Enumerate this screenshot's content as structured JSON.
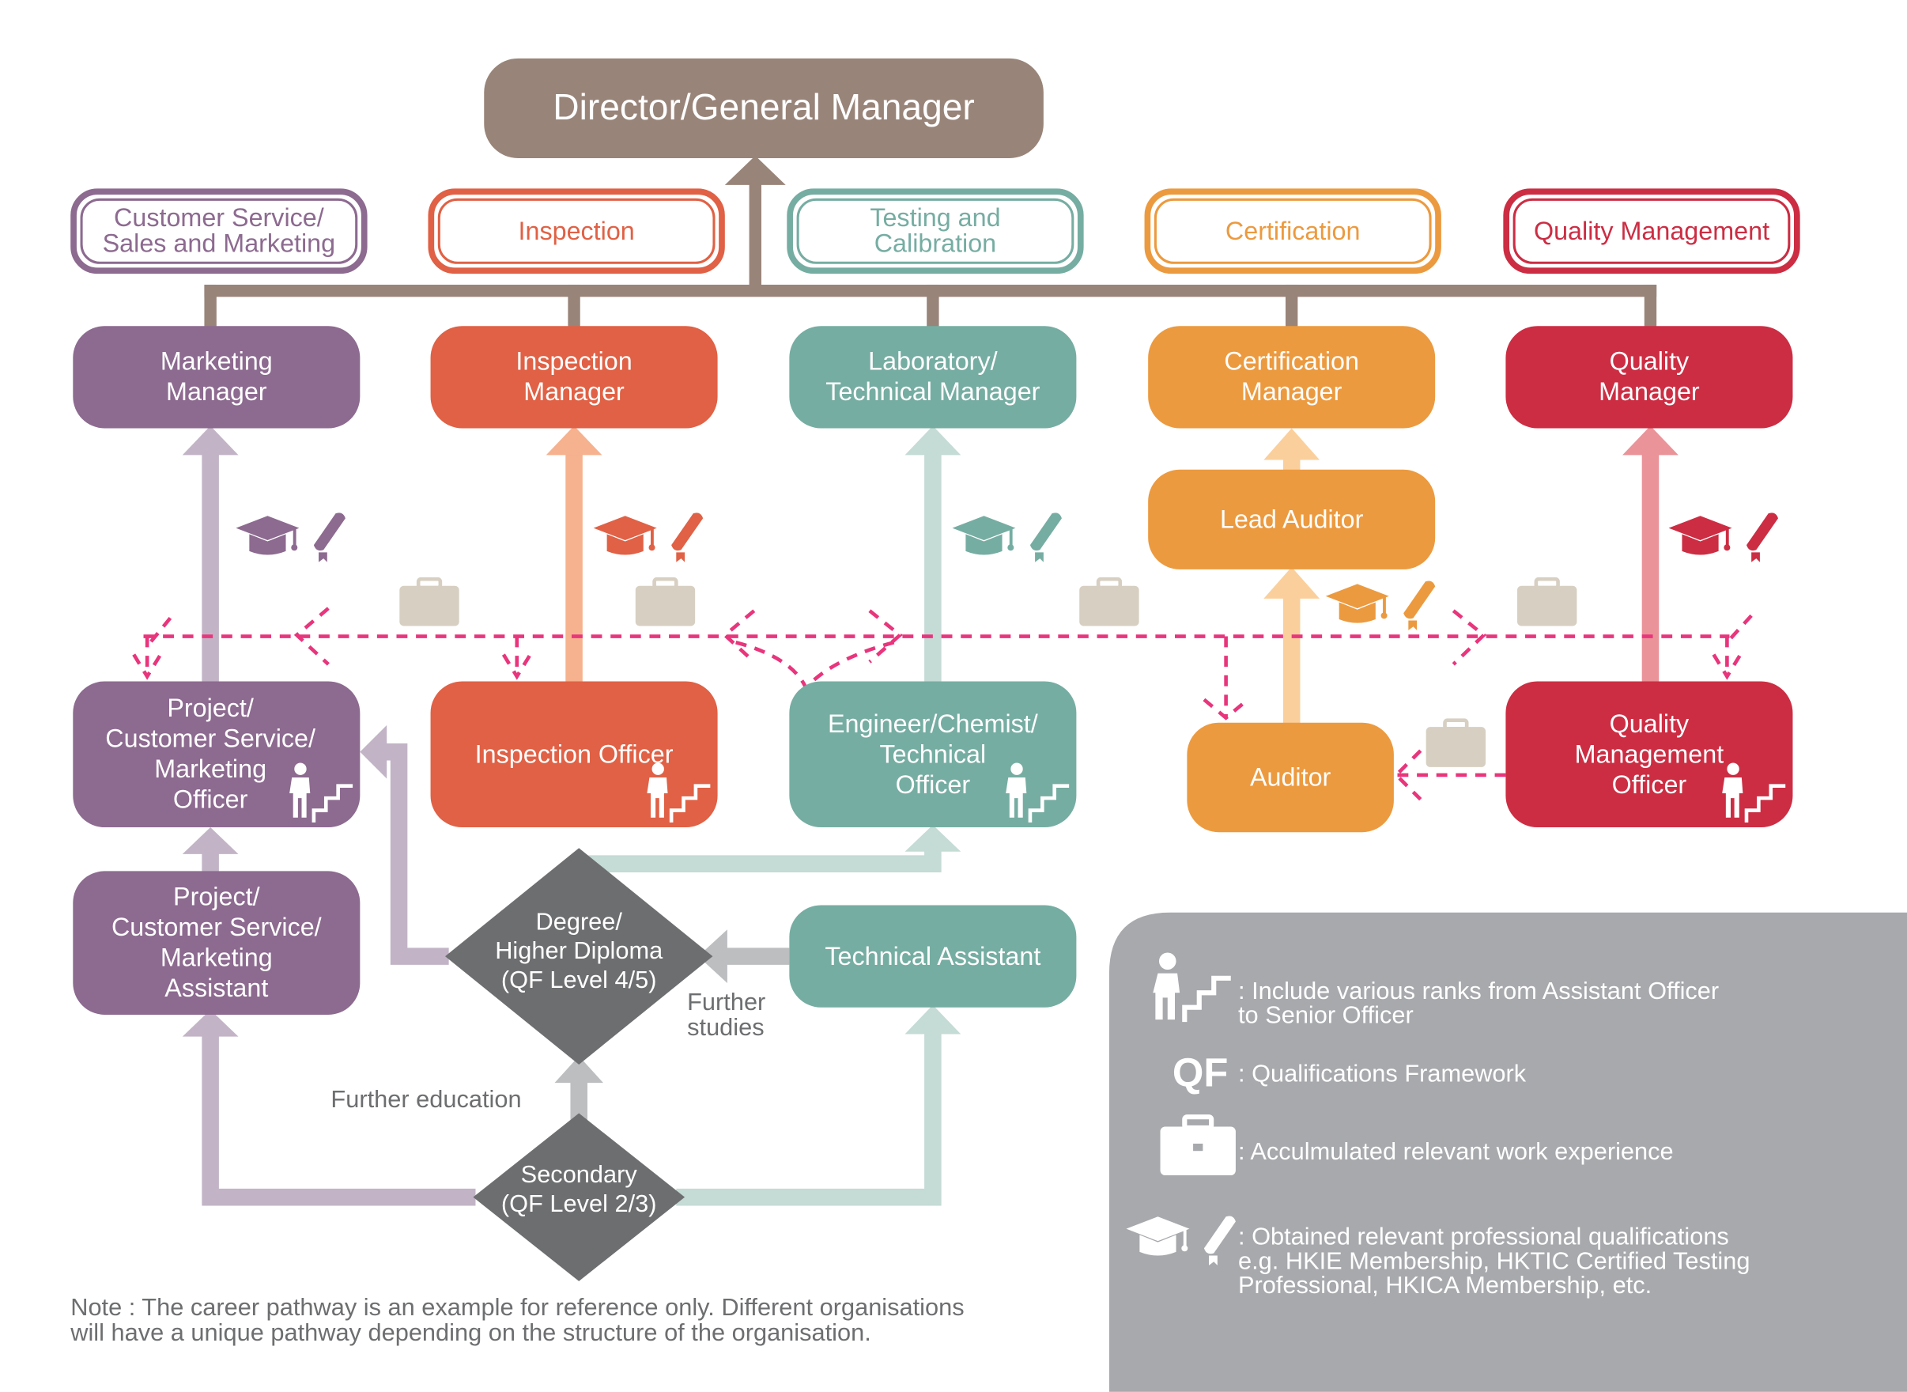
{
  "top": {
    "title": "Director/General Manager"
  },
  "departments": [
    {
      "label": "Customer Service/\nSales and Marketing",
      "color": "#8d6a90"
    },
    {
      "label": "Inspection",
      "color": "#e06145"
    },
    {
      "label": "Testing and\nCalibration",
      "color": "#76ada2"
    },
    {
      "label": "Certification",
      "color": "#ec9a3f"
    },
    {
      "label": "Quality Management",
      "color": "#cc2d43"
    }
  ],
  "managers": [
    "Marketing\nManager",
    "Inspection\nManager",
    "Laboratory/\nTechnical Manager",
    "Certification\nManager",
    "Quality\nManager"
  ],
  "lead_auditor": "Lead Auditor",
  "officers": [
    "Project/\nCustomer Service/\nMarketing\nOfficer",
    "Inspection Officer",
    "Engineer/Chemist/\nTechnical\nOfficer",
    "Auditor",
    "Quality\nManagement\nOfficer"
  ],
  "assistant": "Project/\nCustomer Service/\nMarketing\nAssistant",
  "technical_assistant": "Technical Assistant",
  "degree": "Degree/\nHigher Diploma\n(QF Level 4/5)",
  "secondary": "Secondary\n(QF Level 2/3)",
  "labels": {
    "further_studies": "Further\nstudies",
    "further_education": "Further education",
    "note": "Note : The career pathway is an example for reference only. Different organisations\n          will have a unique pathway depending on the structure of the organisation."
  },
  "legend": {
    "ranks": ": Include various ranks from Assistant Officer\n  to Senior Officer",
    "qf_symbol": "QF",
    "qf": ": Qualifications Framework",
    "work": ": Acculmulated relevant work experience",
    "qualifications": ": Obtained relevant professional qualifications\n  e.g. HKIE Membership, HKTIC Certified Testing\n  Professional, HKICA Membership, etc."
  },
  "colors": {
    "brown": "#998479",
    "purple": "#8d6a90",
    "orange_red": "#e06145",
    "teal": "#76ada2",
    "orange": "#ec9a3f",
    "red": "#cc2d43",
    "diamond": "#6d6e70",
    "legend_bg": "#a7a9ac",
    "dash": "#e8357c",
    "briefcase": "#d7cfc2"
  },
  "icons": [
    "graduation-cap-icon",
    "diploma-scroll-icon",
    "briefcase-icon",
    "climbing-stairs-icon"
  ]
}
